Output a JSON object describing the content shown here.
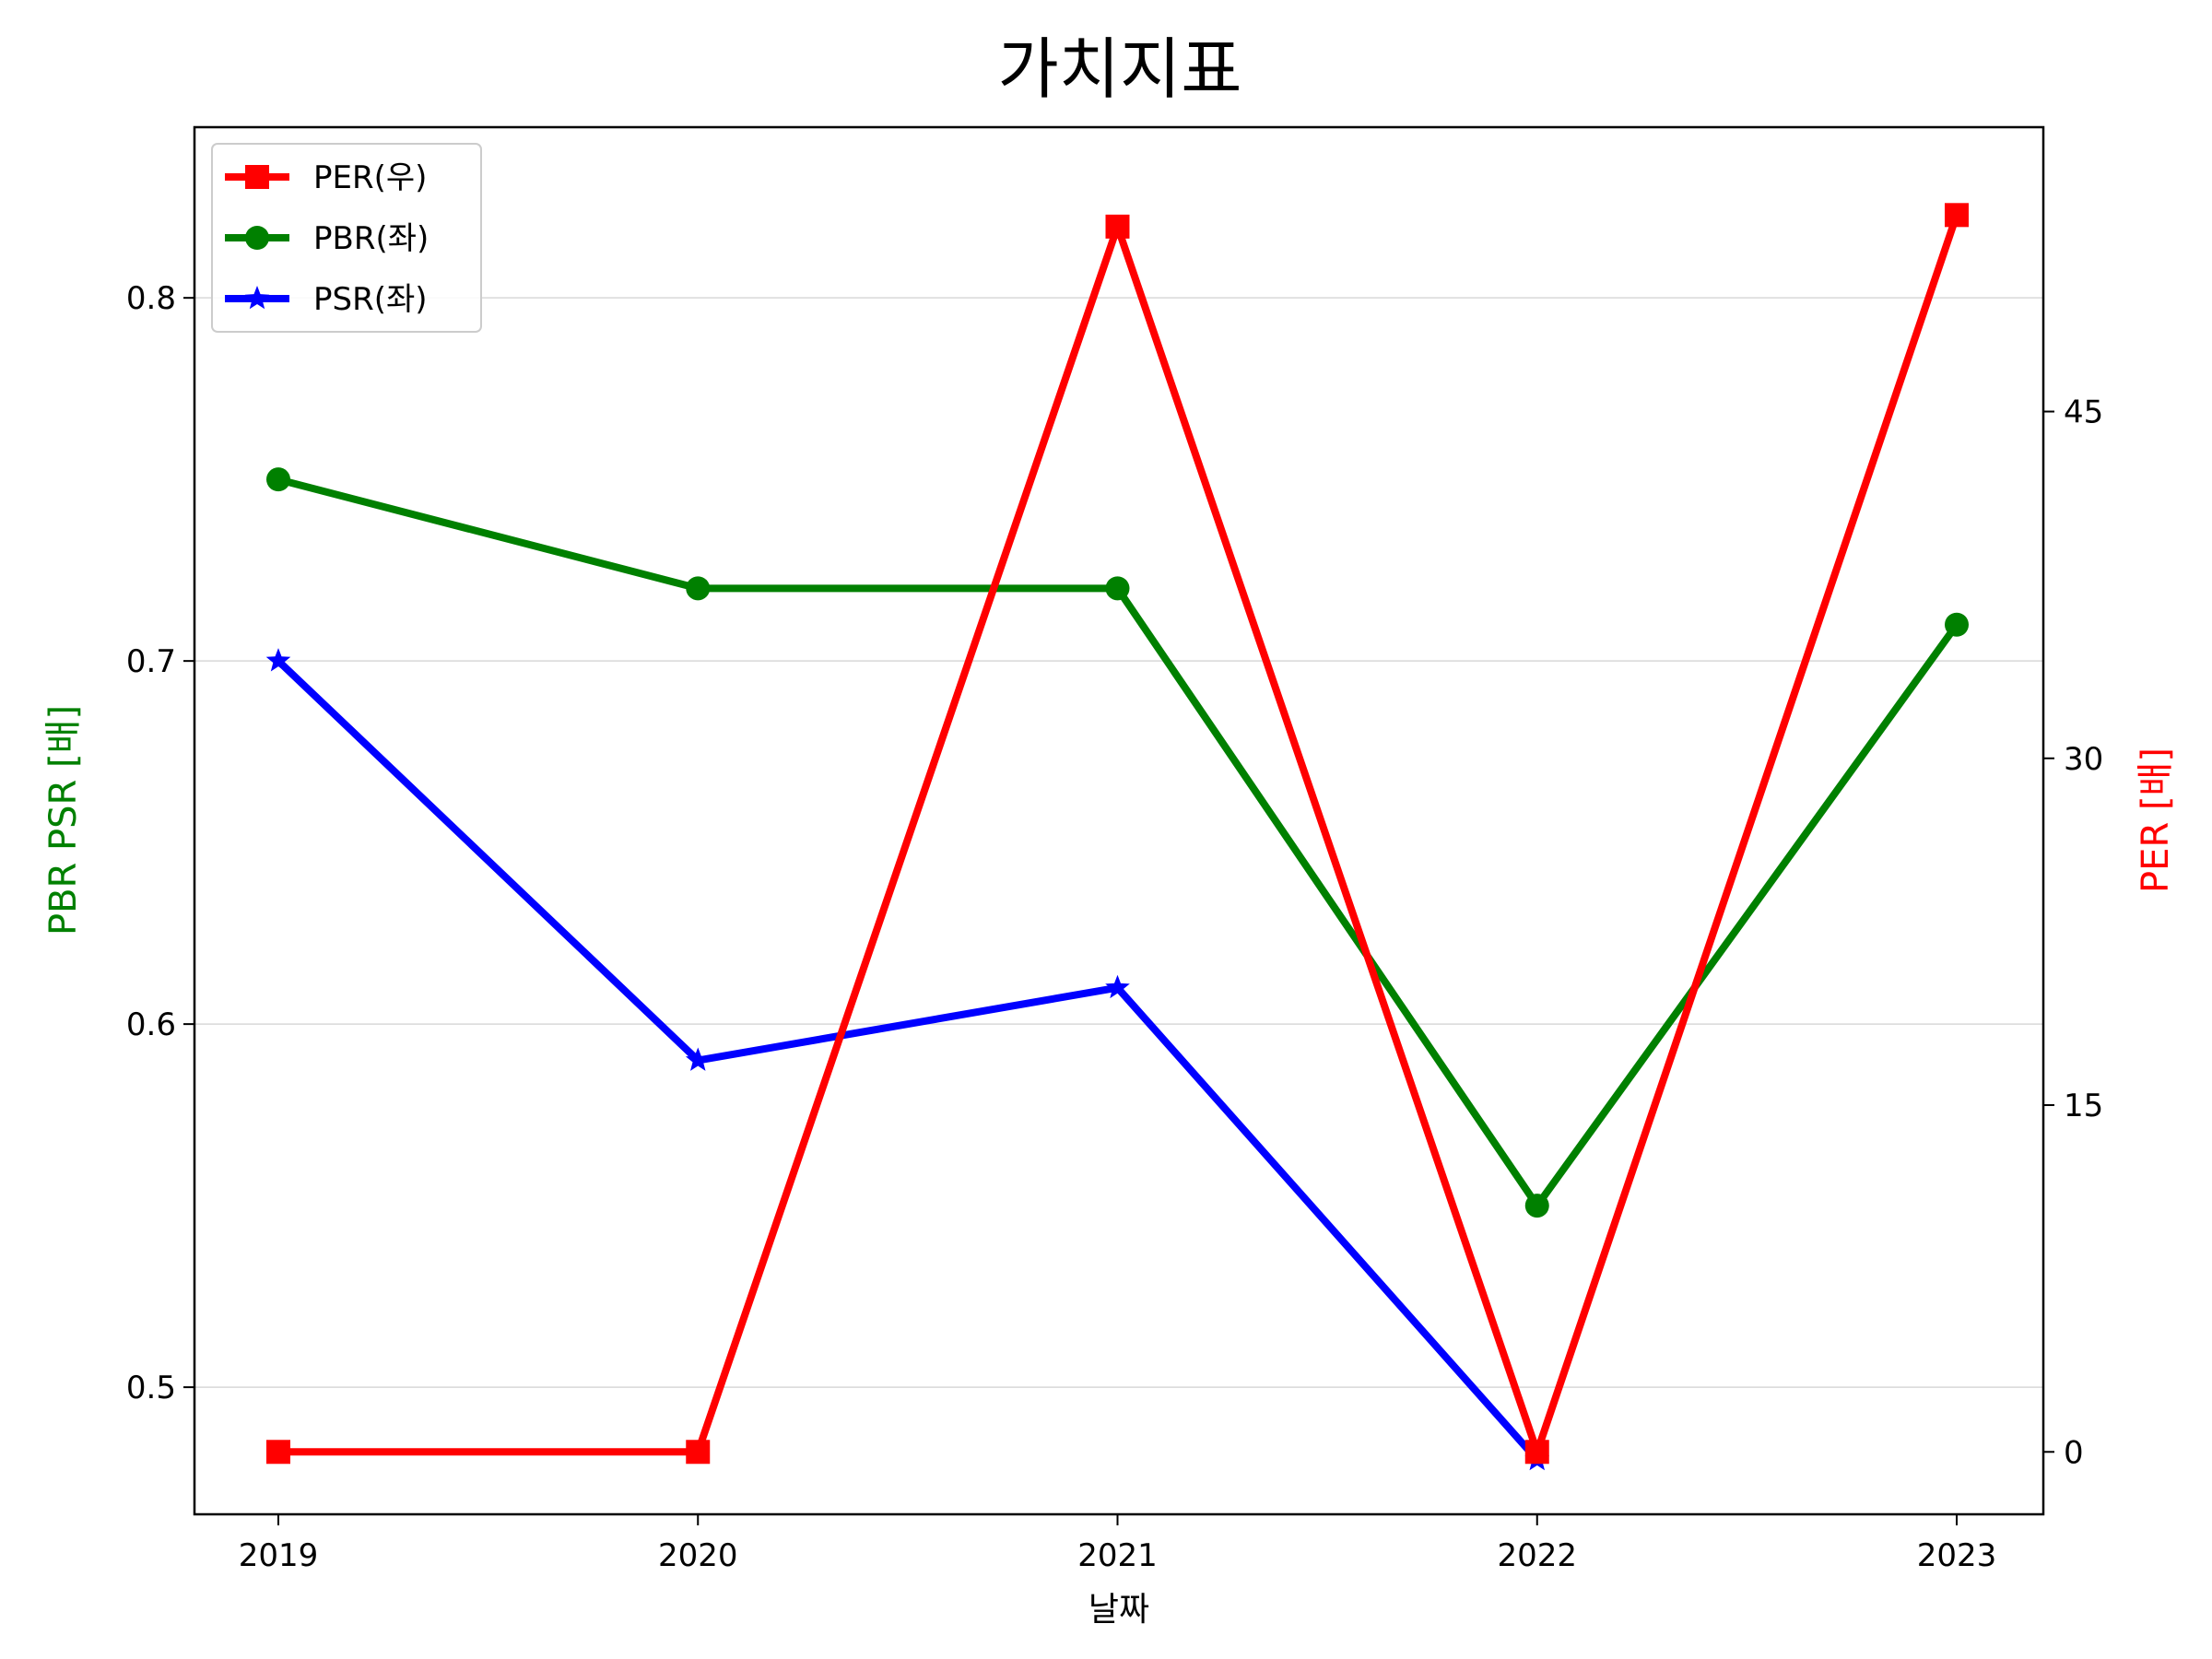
{
  "chart_data": {
    "type": "line",
    "title": "가치지표",
    "xlabel": "날짜",
    "ylabel_left": "PBR PSR [배]",
    "ylabel_right": "PER [배]",
    "colors": {
      "left_label": "#008000",
      "right_label": "#ff0000"
    },
    "categories": [
      "2019",
      "2020",
      "2021",
      "2022",
      "2023"
    ],
    "left_axis": {
      "ylim": [
        0.465,
        0.847
      ],
      "ticks": [
        0.5,
        0.6,
        0.7,
        0.8
      ],
      "tick_labels": [
        "0.5",
        "0.6",
        "0.7",
        "0.8"
      ],
      "grid": true
    },
    "right_axis": {
      "ylim": [
        -2.7,
        57.3
      ],
      "ticks": [
        0,
        15,
        30,
        45
      ],
      "tick_labels": [
        "0",
        "15",
        "30",
        "45"
      ]
    },
    "legend_position": "top-left",
    "series": [
      {
        "name": "PER(우)",
        "axis": "right",
        "color": "#ff0000",
        "marker": "square",
        "values": [
          0,
          0,
          53,
          0,
          53.5
        ]
      },
      {
        "name": "PBR(좌)",
        "axis": "left",
        "color": "#008000",
        "marker": "circle",
        "values": [
          0.75,
          0.72,
          0.72,
          0.55,
          0.71
        ]
      },
      {
        "name": "PSR(좌)",
        "axis": "left",
        "color": "#0000ff",
        "marker": "star",
        "values": [
          0.7,
          0.59,
          0.61,
          0.48,
          null
        ]
      }
    ]
  }
}
